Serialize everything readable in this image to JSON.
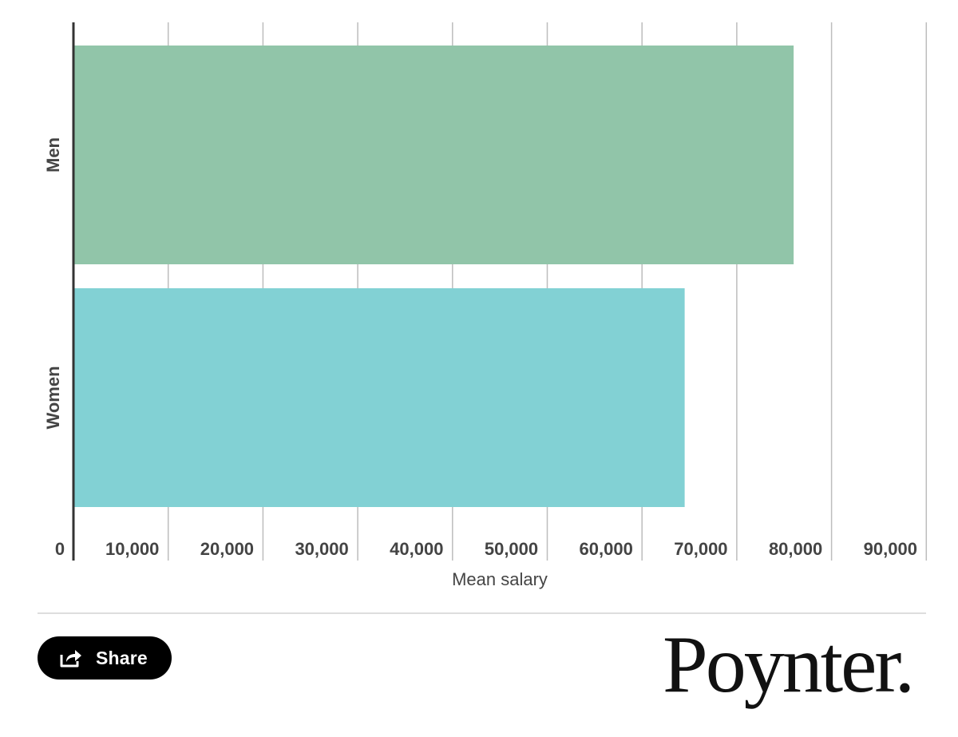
{
  "chart_data": {
    "type": "bar",
    "orientation": "horizontal",
    "categories": [
      "Men",
      "Women"
    ],
    "values": [
      76000,
      64500
    ],
    "colors": [
      "#91c5a9",
      "#82d1d4"
    ],
    "xlabel": "Mean salary",
    "xlim": [
      0,
      90000
    ],
    "xticks": [
      0,
      10000,
      20000,
      30000,
      40000,
      50000,
      60000,
      70000,
      80000,
      90000
    ],
    "xtick_labels": [
      "0",
      "10,000",
      "20,000",
      "30,000",
      "40,000",
      "50,000",
      "60,000",
      "70,000",
      "80,000",
      "90,000"
    ],
    "grid": true
  },
  "share": {
    "label": "Share",
    "icon": "share-icon"
  },
  "logo": {
    "text": "Poynter."
  }
}
